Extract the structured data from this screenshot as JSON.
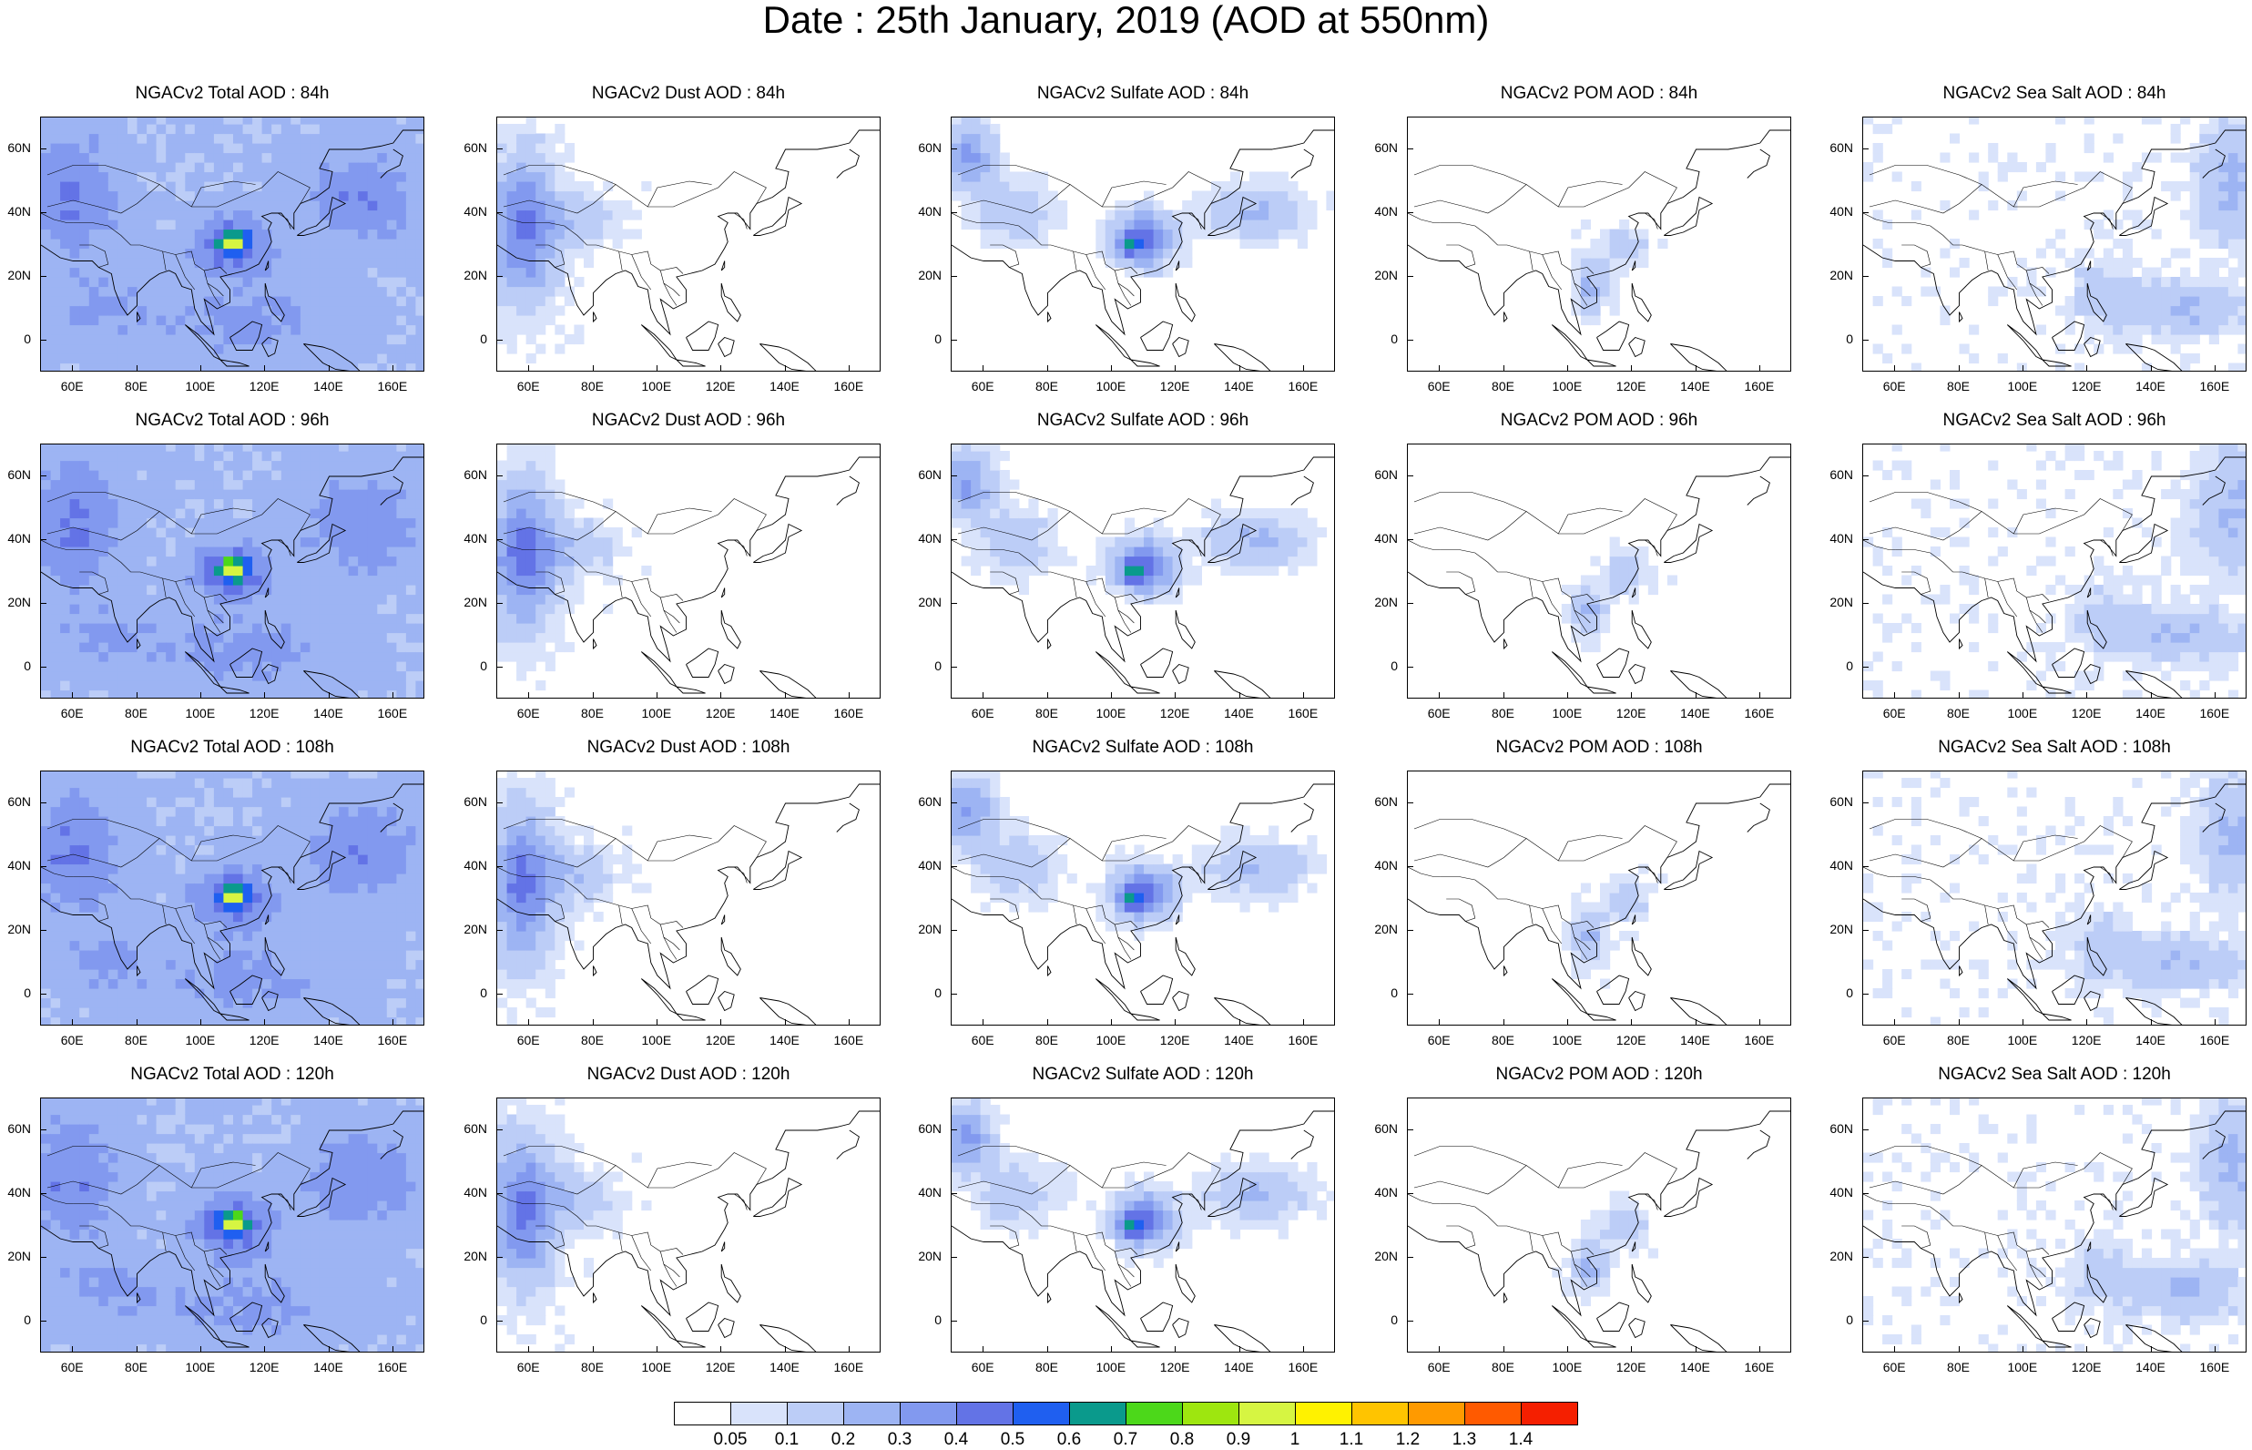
{
  "title": "Date : 25th January, 2019 (AOD at 550nm)",
  "panel_titles": [
    [
      "NGACv2 Total AOD : 84h",
      "NGACv2 Dust AOD : 84h",
      "NGACv2 Sulfate AOD : 84h",
      "NGACv2 POM AOD : 84h",
      "NGACv2 Sea Salt AOD : 84h"
    ],
    [
      "NGACv2 Total AOD : 96h",
      "NGACv2 Dust AOD : 96h",
      "NGACv2 Sulfate AOD : 96h",
      "NGACv2 POM AOD : 96h",
      "NGACv2 Sea Salt AOD : 96h"
    ],
    [
      "NGACv2 Total AOD : 108h",
      "NGACv2 Dust AOD : 108h",
      "NGACv2 Sulfate AOD : 108h",
      "NGACv2 POM AOD : 108h",
      "NGACv2 Sea Salt AOD : 108h"
    ],
    [
      "NGACv2 Total AOD : 120h",
      "NGACv2 Dust AOD : 120h",
      "NGACv2 Sulfate AOD : 120h",
      "NGACv2 POM AOD : 120h",
      "NGACv2 Sea Salt  AOD : 120h"
    ]
  ],
  "lat_ticks": [
    "60N",
    "40N",
    "20N",
    "0"
  ],
  "lon_ticks": [
    "60E",
    "80E",
    "100E",
    "120E",
    "140E",
    "160E"
  ],
  "colorbar": {
    "labels": [
      "0.05",
      "0.1",
      "0.2",
      "0.3",
      "0.4",
      "0.5",
      "0.6",
      "0.7",
      "0.8",
      "0.9",
      "1",
      "1.1",
      "1.2",
      "1.3",
      "1.4"
    ],
    "colors": [
      "#ffffff",
      "#d9e3fb",
      "#bccdf7",
      "#9db4f3",
      "#8299ef",
      "#6373e6",
      "#1f5ff0",
      "#0a9a8c",
      "#4cd81a",
      "#9ee60f",
      "#d6f542",
      "#fff200",
      "#ffc400",
      "#ff9a00",
      "#ff5a00",
      "#f51f00"
    ]
  },
  "map_extent": {
    "lon_min": 50,
    "lon_max": 170,
    "lat_min": -10,
    "lat_max": 70
  }
}
